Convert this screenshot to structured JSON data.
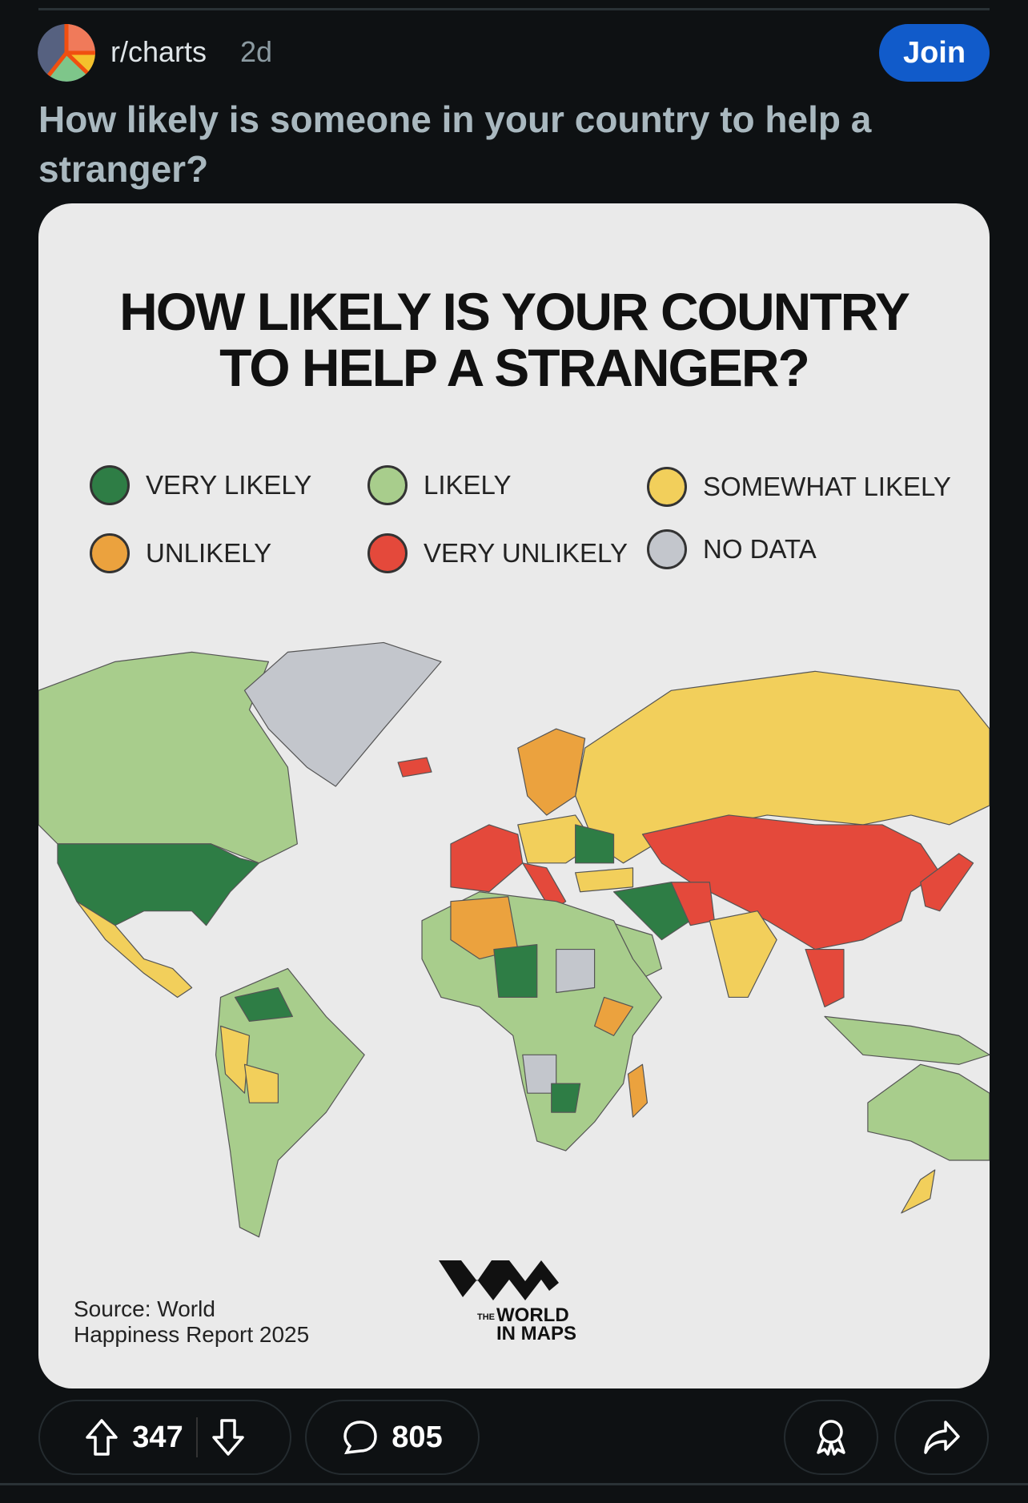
{
  "post": {
    "subreddit": "r/charts",
    "age": "2d",
    "join_label": "Join",
    "title": "How likely is someone in your country to help a stranger?"
  },
  "image": {
    "title_line1": "HOW LIKELY IS YOUR COUNTRY",
    "title_line2": "TO HELP A STRANGER?",
    "legend": [
      {
        "label": "VERY LIKELY",
        "color": "#2e7d45"
      },
      {
        "label": "LIKELY",
        "color": "#a8cd8c"
      },
      {
        "label": "SOMEWHAT LIKELY",
        "color": "#f2cf5b"
      },
      {
        "label": "UNLIKELY",
        "color": "#eba23e"
      },
      {
        "label": "VERY UNLIKELY",
        "color": "#e4493b"
      },
      {
        "label": "NO DATA",
        "color": "#c3c6cc"
      }
    ],
    "source_line1": "Source: World",
    "source_line2": "Happiness Report 2025",
    "logo_text": "THE WORLD IN MAPS"
  },
  "actions": {
    "upvotes": "347",
    "comments": "805",
    "icons": [
      "upvote-icon",
      "downvote-icon",
      "comment-icon",
      "award-icon",
      "share-icon"
    ]
  },
  "colors": {
    "background": "#0e1113",
    "join": "#115bca",
    "title": "#a9b8bf"
  }
}
